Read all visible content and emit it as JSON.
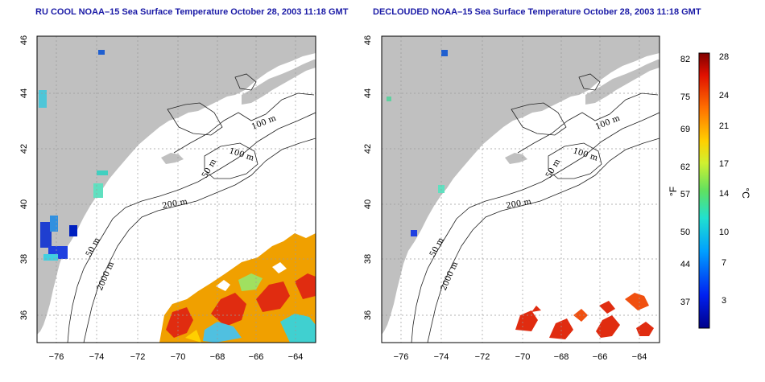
{
  "panels": [
    {
      "title": "RU COOL NOAA–15 Sea Surface Temperature October 28, 2003 11:18 GMT",
      "contour_labels": [
        "100 m",
        "100 m",
        "50 m",
        "200 m",
        "50 m",
        "2000 m"
      ],
      "x_ticks": [
        "−76",
        "−74",
        "−72",
        "−70",
        "−68",
        "−66",
        "−64"
      ],
      "y_ticks": [
        "46",
        "44",
        "42",
        "40",
        "38",
        "36"
      ]
    },
    {
      "title": "DECLOUDED NOAA–15 Sea Surface Temperature October 28, 2003 11:18 GMT",
      "contour_labels": [
        "100 m",
        "100 m",
        "50 m",
        "200 m",
        "50 m",
        "2000 m"
      ],
      "x_ticks": [
        "−76",
        "−74",
        "−72",
        "−70",
        "−68",
        "−66",
        "−64"
      ],
      "y_ticks": [
        "46",
        "44",
        "42",
        "40",
        "38",
        "36"
      ]
    }
  ],
  "colorbar": {
    "fahrenheit_unit": "°F",
    "celsius_unit": "°C",
    "fahrenheit_ticks": [
      "82",
      "75",
      "69",
      "62",
      "57",
      "50",
      "44",
      "37"
    ],
    "celsius_ticks": [
      "28",
      "24",
      "21",
      "17",
      "14",
      "10",
      "7",
      "3"
    ]
  },
  "colors": {
    "land": "#c0c0c0",
    "title": "#1a1aa6",
    "warm_sst": "#e0301e",
    "cool_sst": "#30b0e0"
  }
}
